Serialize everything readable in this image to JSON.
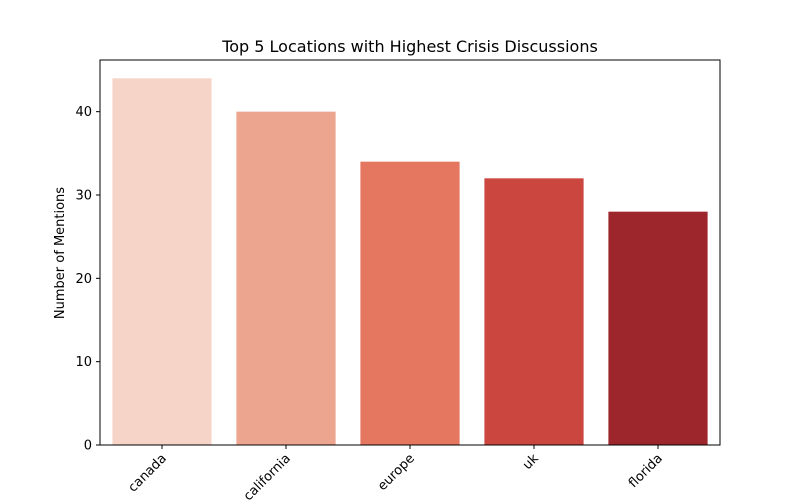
{
  "chart_data": {
    "type": "bar",
    "title": "Top 5 Locations with Highest Crisis Discussions",
    "xlabel": "",
    "ylabel": "Number of Mentions",
    "categories": [
      "canada",
      "california",
      "europe",
      "uk",
      "florida"
    ],
    "values": [
      44,
      40,
      34,
      32,
      28
    ],
    "colors": [
      "#f6d4c7",
      "#eca58f",
      "#e57660",
      "#cc4640",
      "#9c262b"
    ],
    "ylim": [
      0,
      46.2
    ],
    "yticks": [
      0,
      10,
      20,
      30,
      40
    ],
    "grid": false,
    "legend": "none"
  }
}
